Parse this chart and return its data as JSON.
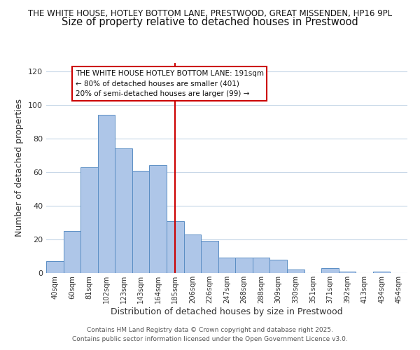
{
  "title_line1": "THE WHITE HOUSE, HOTLEY BOTTOM LANE, PRESTWOOD, GREAT MISSENDEN, HP16 9PL",
  "title_line2": "Size of property relative to detached houses in Prestwood",
  "xlabel": "Distribution of detached houses by size in Prestwood",
  "ylabel": "Number of detached properties",
  "bar_labels": [
    "40sqm",
    "60sqm",
    "81sqm",
    "102sqm",
    "123sqm",
    "143sqm",
    "164sqm",
    "185sqm",
    "206sqm",
    "226sqm",
    "247sqm",
    "268sqm",
    "288sqm",
    "309sqm",
    "330sqm",
    "351sqm",
    "371sqm",
    "392sqm",
    "413sqm",
    "434sqm",
    "454sqm"
  ],
  "bar_values": [
    7,
    25,
    63,
    94,
    74,
    61,
    64,
    31,
    23,
    19,
    9,
    9,
    9,
    8,
    2,
    0,
    3,
    1,
    0,
    1,
    0
  ],
  "bar_color": "#aec6e8",
  "bar_edge_color": "#5b8ec4",
  "vline_x": 7,
  "vline_color": "#cc0000",
  "annotation_title": "THE WHITE HOUSE HOTLEY BOTTOM LANE: 191sqm",
  "annotation_line2": "← 80% of detached houses are smaller (401)",
  "annotation_line3": "20% of semi-detached houses are larger (99) →",
  "annotation_box_color": "#ffffff",
  "annotation_box_edge": "#cc0000",
  "ylim": [
    0,
    125
  ],
  "yticks": [
    0,
    20,
    40,
    60,
    80,
    100,
    120
  ],
  "footer_line1": "Contains HM Land Registry data © Crown copyright and database right 2025.",
  "footer_line2": "Contains public sector information licensed under the Open Government Licence v3.0.",
  "background_color": "#ffffff",
  "grid_color": "#c8d8e8",
  "title_fontsize": 8.5,
  "subtitle_fontsize": 10.5
}
